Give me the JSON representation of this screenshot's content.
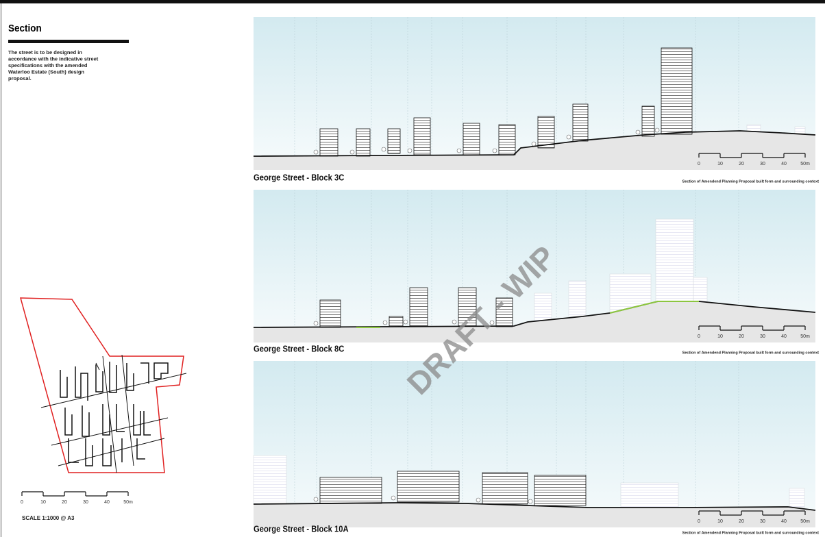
{
  "header": {
    "title": "Section",
    "description": [
      "The street is to be designed in",
      "accordance with the indicative street",
      "specifications with the amended",
      "Waterloo Estate (South) design",
      "proposal."
    ]
  },
  "scale_labels": [
    "0",
    "10",
    "20",
    "30",
    "40",
    "50m"
  ],
  "scale_note": "SCALE 1:1000 @ A3",
  "panels": [
    {
      "title": "George Street - Block 3C",
      "caption": "Section of Amendend Planning Proposal built form and surrounding context"
    },
    {
      "title": "George Street - Block 8C",
      "caption": "Section of Amendend Planning Proposal built form and surrounding context"
    },
    {
      "title": "George Street - Block 10A",
      "caption": "Section of Amendend Planning Proposal built form and surrounding context"
    }
  ],
  "watermark": "DRAFT - WIP"
}
